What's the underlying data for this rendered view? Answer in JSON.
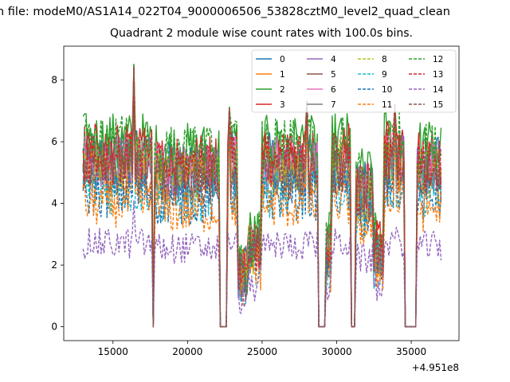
{
  "header": {
    "suptitle": "n file: modeM0/AS1A14_022T04_9000006506_53828cztM0_level2_quad_clean",
    "title": "Quadrant 2 module wise count rates with 100.0s bins."
  },
  "chart_data": {
    "type": "line",
    "title": "Quadrant 2 module wise count rates with 100.0s bins.",
    "xlabel": "",
    "ylabel": "",
    "x_offset_label": "+4.951e8",
    "xlim": [
      11700,
      38200
    ],
    "ylim": [
      -0.45,
      9.1
    ],
    "xticks": [
      15000,
      20000,
      25000,
      30000,
      35000
    ],
    "xtick_labels": [
      "15000",
      "20000",
      "25000",
      "30000",
      "35000"
    ],
    "yticks": [
      0,
      2,
      4,
      6,
      8
    ],
    "ytick_labels": [
      "0",
      "2",
      "4",
      "6",
      "8"
    ],
    "grid": false,
    "legend_position": "top-right",
    "legend_columns": 4,
    "x_range": [
      13000,
      37000
    ],
    "bin_step": 100,
    "segments": [
      {
        "x": [
          13000,
          17600
        ],
        "mean": 5.4
      },
      {
        "x": [
          17800,
          22100
        ],
        "mean": 5.1
      },
      {
        "x": [
          22200,
          22600
        ],
        "mean": 0.0
      },
      {
        "x": [
          22700,
          23300
        ],
        "mean": 5.3
      },
      {
        "x": [
          23400,
          24000
        ],
        "mean": 1.8
      },
      {
        "x": [
          24100,
          24900
        ],
        "mean": 2.6
      },
      {
        "x": [
          25000,
          28700
        ],
        "mean": 5.3
      },
      {
        "x": [
          28800,
          29200
        ],
        "mean": 0.0
      },
      {
        "x": [
          29300,
          29600
        ],
        "mean": 2.5
      },
      {
        "x": [
          29700,
          30900
        ],
        "mean": 5.4
      },
      {
        "x": [
          31000,
          31200
        ],
        "mean": 0.0
      },
      {
        "x": [
          31300,
          32400
        ],
        "mean": 4.4
      },
      {
        "x": [
          32500,
          33100
        ],
        "mean": 2.5
      },
      {
        "x": [
          33200,
          34500
        ],
        "mean": 5.5
      },
      {
        "x": [
          34600,
          35300
        ],
        "mean": 0.0
      },
      {
        "x": [
          35400,
          37000
        ],
        "mean": 5.2
      }
    ],
    "spikes": [
      {
        "x": 16400,
        "y": 8.6
      },
      {
        "x": 22800,
        "y": 7.2
      },
      {
        "x": 28000,
        "y": 7.4
      },
      {
        "x": 33900,
        "y": 7.3
      }
    ],
    "series": [
      {
        "name": "0",
        "color": "#1f77b4",
        "dashed": false,
        "scale": 1.02
      },
      {
        "name": "1",
        "color": "#ff7f0e",
        "dashed": false,
        "scale": 0.94
      },
      {
        "name": "2",
        "color": "#2ca02c",
        "dashed": false,
        "scale": 1.12
      },
      {
        "name": "3",
        "color": "#d62728",
        "dashed": false,
        "scale": 1.06
      },
      {
        "name": "4",
        "color": "#9467bd",
        "dashed": false,
        "scale": 0.98
      },
      {
        "name": "5",
        "color": "#8c564b",
        "dashed": false,
        "scale": 0.96
      },
      {
        "name": "6",
        "color": "#e377c2",
        "dashed": false,
        "scale": 1.0
      },
      {
        "name": "7",
        "color": "#7f7f7f",
        "dashed": false,
        "scale": 0.99
      },
      {
        "name": "8",
        "color": "#bcbd22",
        "dashed": true,
        "scale": 0.97
      },
      {
        "name": "9",
        "color": "#17becf",
        "dashed": true,
        "scale": 0.82
      },
      {
        "name": "10",
        "color": "#1f77b4",
        "dashed": true,
        "scale": 0.8
      },
      {
        "name": "11",
        "color": "#ff7f0e",
        "dashed": true,
        "scale": 0.74
      },
      {
        "name": "12",
        "color": "#2ca02c",
        "dashed": true,
        "scale": 1.1
      },
      {
        "name": "13",
        "color": "#d62728",
        "dashed": true,
        "scale": 1.02
      },
      {
        "name": "14",
        "color": "#9467bd",
        "dashed": true,
        "scale": 0.5
      },
      {
        "name": "15",
        "color": "#8c564b",
        "dashed": true,
        "scale": 0.93
      }
    ]
  }
}
